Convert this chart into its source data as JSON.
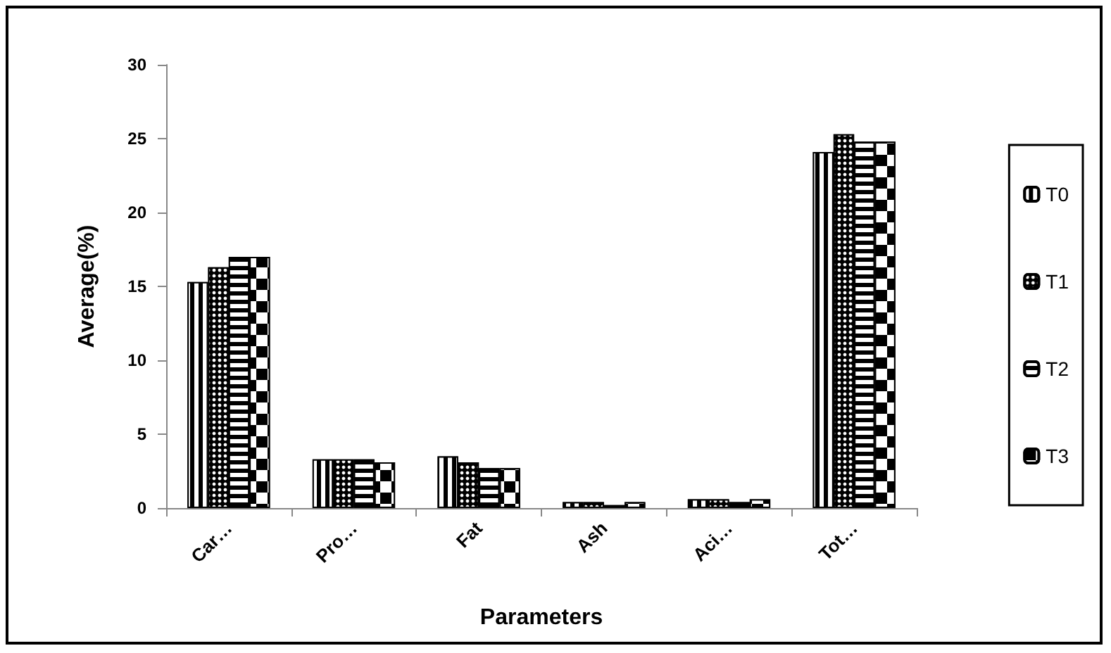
{
  "chart_data": {
    "type": "bar",
    "xlabel": "Parameters",
    "ylabel": "Average(%)",
    "categories": [
      "Car…",
      "Pro…",
      "Fat",
      "Ash",
      "Aci…",
      "Tot…"
    ],
    "series": [
      {
        "name": "T0",
        "color": "#000000",
        "values": [
          15.3,
          3.3,
          3.5,
          0.4,
          0.6,
          24.1
        ]
      },
      {
        "name": "T1",
        "color": "#000000",
        "values": [
          16.3,
          3.3,
          3.1,
          0.4,
          0.6,
          25.3
        ]
      },
      {
        "name": "T2",
        "color": "#000000",
        "values": [
          17.0,
          3.3,
          2.7,
          0.2,
          0.4,
          24.8
        ]
      },
      {
        "name": "T3",
        "color": "#000000",
        "values": [
          17.0,
          3.1,
          2.7,
          0.4,
          0.6,
          24.8
        ]
      }
    ],
    "ylim": [
      0,
      30
    ],
    "yticks": [
      0,
      5,
      10,
      15,
      20,
      25,
      30
    ],
    "grid": false,
    "legend": "right"
  }
}
